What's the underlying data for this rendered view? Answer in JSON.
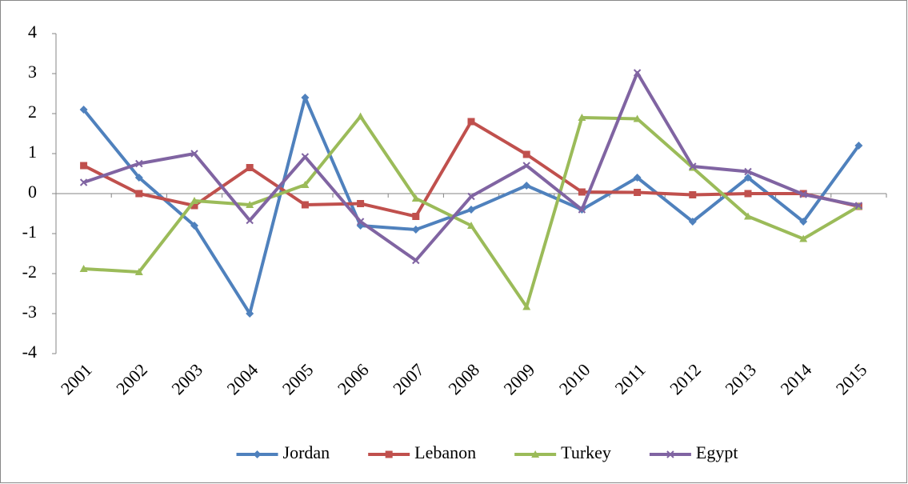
{
  "chart_data": {
    "type": "line",
    "categories": [
      "2001",
      "2002",
      "2003",
      "2004",
      "2005",
      "2006",
      "2007",
      "2008",
      "2009",
      "2010",
      "2011",
      "2012",
      "2013",
      "2014",
      "2015"
    ],
    "series": [
      {
        "name": "Jordan",
        "color": "#4f81bd",
        "marker": "diamond",
        "values": [
          2.1,
          0.4,
          -0.8,
          -3.0,
          2.4,
          -0.8,
          -0.9,
          -0.4,
          0.2,
          -0.4,
          0.4,
          -0.7,
          0.4,
          -0.7,
          1.2
        ]
      },
      {
        "name": "Lebanon",
        "color": "#c0504d",
        "marker": "square",
        "values": [
          0.7,
          0.0,
          -0.3,
          0.65,
          -0.28,
          -0.25,
          -0.57,
          1.8,
          0.98,
          0.04,
          0.03,
          -0.03,
          0.0,
          0.0,
          -0.32
        ]
      },
      {
        "name": "Turkey",
        "color": "#9bbb59",
        "marker": "triangle",
        "values": [
          -1.88,
          -1.96,
          -0.18,
          -0.28,
          0.22,
          1.93,
          -0.12,
          -0.8,
          -2.83,
          1.9,
          1.87,
          0.65,
          -0.57,
          -1.13,
          -0.32
        ]
      },
      {
        "name": "Egypt",
        "color": "#8064a2",
        "marker": "x",
        "values": [
          0.28,
          0.75,
          1.0,
          -0.67,
          0.92,
          -0.7,
          -1.67,
          -0.07,
          0.7,
          -0.4,
          3.02,
          0.68,
          0.55,
          -0.02,
          -0.3
        ]
      }
    ],
    "ylim": [
      -4,
      4
    ],
    "yticks": [
      -4,
      -3,
      -2,
      -1,
      0,
      1,
      2,
      3,
      4
    ],
    "grid": false,
    "legend": "bottom"
  }
}
